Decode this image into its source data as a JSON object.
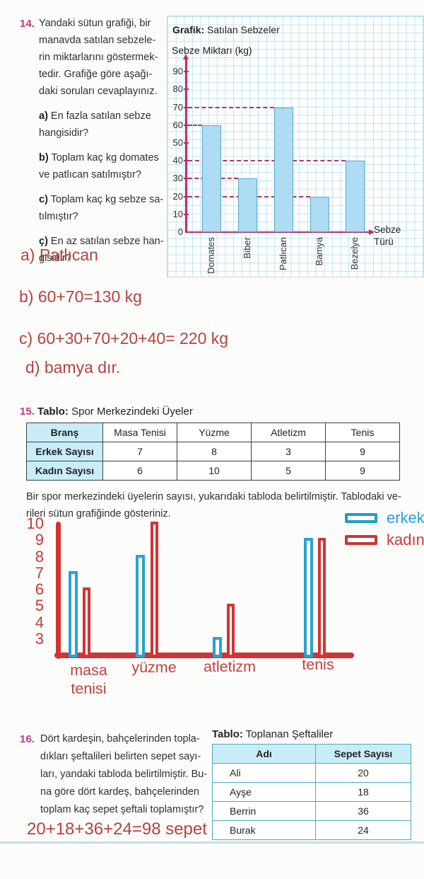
{
  "q14": {
    "number": "14.",
    "text_lines": [
      "Yandaki sütun grafiği, bir",
      "manavda satılan sebzele-",
      "rin miktarlarını göstermek-",
      "tedir. Grafiğe göre aşağı-",
      "daki soruları cevaplayınız."
    ],
    "sub_items": [
      {
        "label": "a)",
        "lines": [
          "En fazla satılan sebze",
          "hangisidir?"
        ]
      },
      {
        "label": "b)",
        "lines": [
          "Toplam kaç kg domates",
          "ve patlıcan satılmıştır?"
        ]
      },
      {
        "label": "c)",
        "lines": [
          "Toplam kaç kg sebze sa-",
          "tılmıştır?"
        ]
      },
      {
        "label": "ç)",
        "lines": [
          "En az satılan sebze han-",
          "gisidir?"
        ]
      }
    ],
    "answers": [
      "a) Patlıcan",
      "b) 60+70=130 kg",
      "c) 60+30+70+20+40= 220 kg",
      "d) bamya dır."
    ]
  },
  "display": {
    "chart14": {
      "title_bold": "Grafik:",
      "title_rest": "Satılan Sebzeler",
      "ylabel": "Sebze Miktarı (kg)",
      "xlabel_line1": "Sebze",
      "xlabel_line2": "Türü"
    }
  },
  "q15": {
    "number": "15.",
    "title_bold": "Tablo:",
    "title_rest": "Spor Merkezindeki Üyeler",
    "table": {
      "headers": [
        "Branş",
        "Masa Tenisi",
        "Yüzme",
        "Atletizm",
        "Tenis"
      ],
      "rows": [
        [
          "Erkek Sayısı",
          "7",
          "8",
          "3",
          "9"
        ],
        [
          "Kadın Sayısı",
          "6",
          "10",
          "5",
          "9"
        ]
      ]
    },
    "paragraph_lines": [
      "Bir spor merkezindeki üyelerin sayısı, yukarıdaki tabloda belirtilmiştir. Tablodaki ve-",
      "rileri sütun grafiğinde gösteriniz."
    ]
  },
  "q16": {
    "number": "16.",
    "text_lines": [
      "Dört kardeşin, bahçelerinden topla-",
      "dıkları şeftalileri belirten sepet sayı-",
      "ları, yandaki tabloda belirtilmiştir. Bu-",
      "na göre dört kardeş, bahçelerinden",
      "toplam kaç sepet şeftali toplamıştır?"
    ],
    "answer": "20+18+36+24=98 sepet",
    "table_title_bold": "Tablo:",
    "table_title_rest": "Toplanan Şeftaliler",
    "table": {
      "headers": [
        "Adı",
        "Sepet Sayısı"
      ],
      "rows": [
        [
          "Ali",
          "20"
        ],
        [
          "Ayşe",
          "18"
        ],
        [
          "Berrin",
          "36"
        ],
        [
          "Burak",
          "24"
        ]
      ]
    }
  },
  "chart_data": [
    {
      "type": "bar",
      "title": "Grafik: Satılan Sebzeler",
      "ylabel": "Sebze Miktarı (kg)",
      "xlabel": "Sebze Türü",
      "categories": [
        "Domates",
        "Biber",
        "Patlıcan",
        "Bamya",
        "Bezelye"
      ],
      "values": [
        60,
        30,
        70,
        20,
        40
      ],
      "ylim": [
        0,
        95
      ],
      "yticks": [
        0,
        10,
        20,
        30,
        40,
        50,
        60,
        70,
        80,
        90
      ],
      "grid": true,
      "bar_fill": "#aedcf2",
      "bar_border": "#55a8cf",
      "axis_color": "#c42a6a",
      "dash_color": "#b23468"
    },
    {
      "type": "bar",
      "title": "",
      "categories": [
        "masa tenisi",
        "yüzme",
        "atletizm",
        "tenis"
      ],
      "series": [
        {
          "name": "erkek",
          "values": [
            7,
            8,
            3,
            9
          ],
          "color": "#2aa2d2"
        },
        {
          "name": "kadın",
          "values": [
            6,
            10,
            5,
            9
          ],
          "color": "#d13434"
        }
      ],
      "yticks": [
        3,
        4,
        5,
        6,
        7,
        8,
        9,
        10
      ],
      "legend_position": "top-right",
      "style": "hand-drawn-outline"
    }
  ],
  "colors": {
    "question_number": "#c13a7e",
    "handwriting_red": "#b9413e",
    "grid_line": "#bfe4ee",
    "table_header_bg": "#c9edf8",
    "table16_border": "#4aa9bf"
  }
}
